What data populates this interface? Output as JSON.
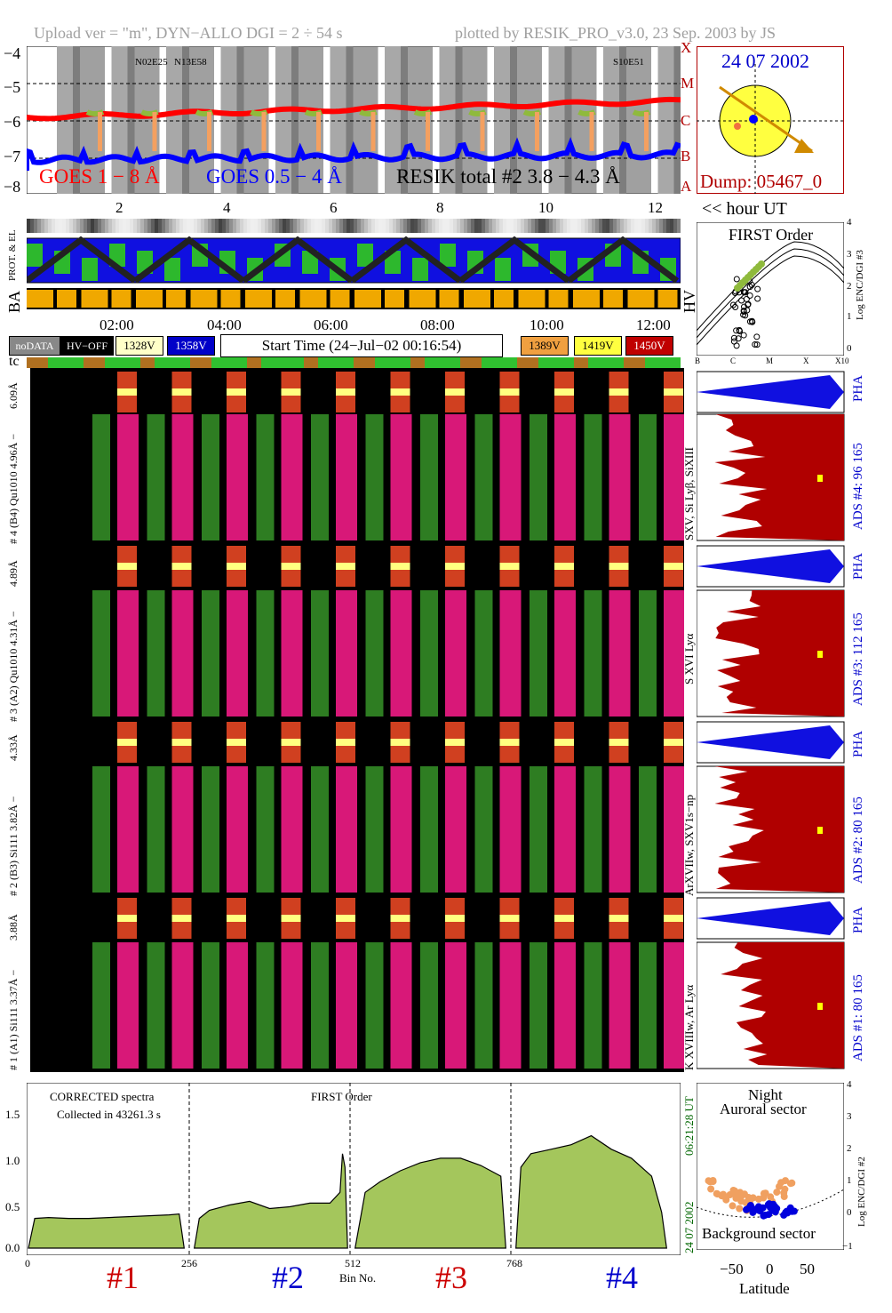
{
  "header": {
    "upload": "Upload ver = \"m\", DYN−ALLO DGI =   2 ÷  54 s",
    "plotted": "plotted by RESIK_PRO_v3.0, 23 Sep. 2003 by JS"
  },
  "goes_panel": {
    "y_ticks": [
      "−4",
      "−5",
      "−6",
      "−7",
      "−8"
    ],
    "class_ticks": [
      "X",
      "M",
      "C",
      "B",
      "A"
    ],
    "legend_goes1": "GOES 1 − 8 Å",
    "legend_goes05": "GOES 0.5 − 4 Å",
    "legend_resik": "RESIK total #2  3.8 − 4.3 Å",
    "active_region_labels": [
      "N02E25",
      "N13E58",
      "S10E51"
    ],
    "colors": {
      "goes1": "#ff0000",
      "goes05": "#0000ff",
      "resik": "#8fba3c",
      "flare": "#f4a060"
    }
  },
  "sun_panel": {
    "date": "24 07 2002",
    "dump": "Dump: 05467_0"
  },
  "hour_axis": {
    "ticks": [
      "2",
      "4",
      "6",
      "8",
      "10",
      "12"
    ],
    "label": "<< hour UT"
  },
  "strip_labels": {
    "prot": "PROT. & EL",
    "ba": "BA",
    "hv": "HV"
  },
  "time_axis": {
    "ticks": [
      "02:00",
      "04:00",
      "06:00",
      "08:00",
      "10:00",
      "12:00"
    ]
  },
  "legend": {
    "nodata": "noDATA",
    "hvoff": "HV−OFF",
    "v1328": "1328V",
    "v1358": "1358V",
    "start_time": "Start Time (24−Jul−02 00:16:54)",
    "v1389": "1389V",
    "v1419": "1419V",
    "v1450": "1450V",
    "colors": {
      "v1328": "#ffffc8",
      "v1358": "#0000c8",
      "v1389": "#f0a040",
      "v1419": "#ffff40",
      "v1450": "#c00000"
    }
  },
  "tc_label": "tc",
  "first_order_panel": {
    "title": "FIRST Order",
    "y_label": "Log ENC/DGI #3",
    "y_ticks": [
      "4",
      "3",
      "2",
      "1",
      "0"
    ],
    "x_ticks": [
      "B",
      "C",
      "M",
      "X",
      "X10"
    ]
  },
  "detectors": [
    {
      "id": "4",
      "strip_label": "6.09Å",
      "main_label": "# 4 (B4) Qu1010 4.96Å −",
      "spec_label": "SXV, Si Lyβ, SiXIII",
      "pha": "PHA",
      "ads": "ADS #4:   96 165"
    },
    {
      "id": "3",
      "strip_label": "4.89Å",
      "main_label": "# 3 (A2) Qu1010  4.31Å −",
      "spec_label": "S XVI Lyα",
      "pha": "PHA",
      "ads": "ADS #3:   112 165"
    },
    {
      "id": "2",
      "strip_label": "4.33Å",
      "main_label": "# 2 (B3) Si111  3.82Å −",
      "spec_label": "ArXVIIw, SXV1s−np",
      "pha": "PHA",
      "ads": "ADS #2:   80 165"
    },
    {
      "id": "1",
      "strip_label": "3.88Å",
      "main_label": "# 1 (A1) Si111  3.37Å −",
      "spec_label": "K XVIIIw, Ar Lyα",
      "pha": "",
      "ads": "ADS #1:   80 165"
    }
  ],
  "spectrum_panel": {
    "title1": "CORRECTED spectra",
    "title2": "Collected in 43261.3 s",
    "title3": "FIRST Order",
    "y_ticks": [
      "1.5",
      "1.0",
      "0.5",
      "0.0"
    ],
    "x_ticks": [
      "0",
      "256",
      "512",
      "768"
    ],
    "x_label": "Bin No.",
    "side_date": "24 07 2002",
    "side_time": "06:21:28 UT",
    "detector_labels": [
      "#1",
      "#2",
      "#3",
      "#4"
    ],
    "detector_colors": [
      "#cc0000",
      "#0000cc",
      "#cc0000",
      "#0000cc"
    ]
  },
  "latitude_panel": {
    "night": "Night",
    "auroral": "Auroral sector",
    "background": "Background sector",
    "x_label": "Latitude",
    "x_ticks": [
      "−50",
      "0",
      "50"
    ],
    "y_label": "Log ENC/DGI #2",
    "y_ticks": [
      "4",
      "3",
      "2",
      "1",
      "0",
      "−1"
    ]
  },
  "chart_data": {
    "type": "area",
    "title": "CORRECTED spectra",
    "xlabel": "Bin No.",
    "ylabel": "",
    "xlim": [
      0,
      1024
    ],
    "ylim": [
      0,
      1.8
    ],
    "series": [
      {
        "name": "#1",
        "x": [
          0,
          10,
          32,
          64,
          96,
          128,
          160,
          192,
          224,
          240,
          248
        ],
        "y": [
          0.0,
          0.33,
          0.34,
          0.33,
          0.33,
          0.34,
          0.35,
          0.36,
          0.37,
          0.38,
          0.0
        ]
      },
      {
        "name": "#2",
        "x": [
          264,
          272,
          288,
          320,
          352,
          384,
          416,
          448,
          480,
          496,
          500,
          504,
          508
        ],
        "y": [
          0.0,
          0.33,
          0.42,
          0.48,
          0.52,
          0.44,
          0.46,
          0.5,
          0.5,
          0.62,
          1.05,
          0.9,
          0.0
        ]
      },
      {
        "name": "#3",
        "x": [
          520,
          536,
          560,
          592,
          624,
          656,
          688,
          720,
          752,
          760
        ],
        "y": [
          0.0,
          0.62,
          0.74,
          0.86,
          0.95,
          1.0,
          1.0,
          0.92,
          0.8,
          0.0
        ]
      },
      {
        "name": "#4",
        "x": [
          776,
          784,
          800,
          832,
          864,
          896,
          928,
          960,
          992,
          1008,
          1016
        ],
        "y": [
          0.0,
          0.9,
          1.05,
          1.1,
          1.15,
          1.25,
          1.1,
          1.0,
          0.8,
          0.4,
          0.0
        ]
      }
    ]
  }
}
